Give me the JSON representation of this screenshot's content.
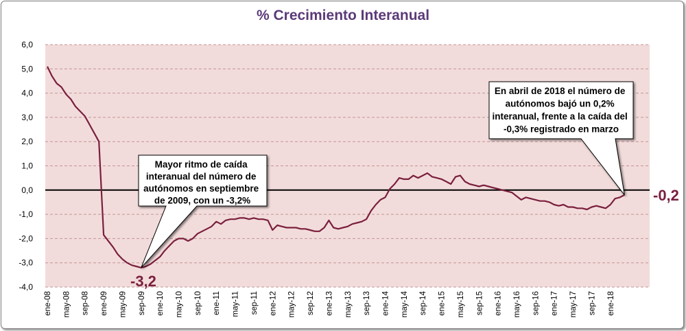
{
  "chart_data": {
    "type": "line",
    "title": "% Crecimiento Interanual",
    "xlabel": "",
    "ylabel": "",
    "ylim": [
      -4.0,
      6.0
    ],
    "y_ticks": [
      "6,0",
      "5,0",
      "4,0",
      "3,0",
      "2,0",
      "1,0",
      "0,0",
      "-1,0",
      "-2,0",
      "-3,0",
      "-4,0"
    ],
    "x_tick_labels": [
      "ene-08",
      "may-08",
      "sep-08",
      "ene-09",
      "may-09",
      "sep-09",
      "ene-10",
      "may-10",
      "sep-10",
      "ene-11",
      "may-11",
      "sep-11",
      "ene-12",
      "may-12",
      "sep-12",
      "ene-13",
      "may-13",
      "sep-13",
      "ene-14",
      "may-14",
      "sep-14",
      "ene-15",
      "may-15",
      "sep-15",
      "ene-16",
      "may-16",
      "sep-16",
      "ene-17",
      "may-17",
      "sep-17",
      "ene-18"
    ],
    "grid": true,
    "legend": "none",
    "colors": {
      "line": "#7a1f3d",
      "title": "#5b3a78",
      "plot_background": "#f2dcdb",
      "gridline": "#c09595",
      "zero_line": "#000000"
    },
    "series": [
      {
        "x": [
          "ene-08",
          "feb-08",
          "mar-08",
          "abr-08",
          "may-08",
          "jun-08",
          "jul-08",
          "ago-08",
          "sep-08",
          "oct-08",
          "nov-08",
          "dic-08",
          "ene-09",
          "feb-09",
          "mar-09",
          "abr-09",
          "may-09",
          "jun-09",
          "jul-09",
          "ago-09",
          "sep-09",
          "oct-09",
          "nov-09",
          "dic-09",
          "ene-10",
          "feb-10",
          "mar-10",
          "abr-10",
          "may-10",
          "jun-10",
          "jul-10",
          "ago-10",
          "sep-10",
          "oct-10",
          "nov-10",
          "dic-10",
          "ene-11",
          "feb-11",
          "mar-11",
          "abr-11",
          "may-11",
          "jun-11",
          "jul-11",
          "ago-11",
          "sep-11",
          "oct-11",
          "nov-11",
          "dic-11",
          "ene-12",
          "feb-12",
          "mar-12",
          "abr-12",
          "may-12",
          "jun-12",
          "jul-12",
          "ago-12",
          "sep-12",
          "oct-12",
          "nov-12",
          "dic-12",
          "ene-13",
          "feb-13",
          "mar-13",
          "abr-13",
          "may-13",
          "jun-13",
          "jul-13",
          "ago-13",
          "sep-13",
          "oct-13",
          "nov-13",
          "dic-13",
          "ene-14",
          "feb-14",
          "mar-14",
          "abr-14",
          "may-14",
          "jun-14",
          "jul-14",
          "ago-14",
          "sep-14",
          "oct-14",
          "nov-14",
          "dic-14",
          "ene-15",
          "feb-15",
          "mar-15",
          "abr-15",
          "may-15",
          "jun-15",
          "jul-15",
          "ago-15",
          "sep-15",
          "oct-15",
          "nov-15",
          "dic-15",
          "ene-16",
          "feb-16",
          "mar-16",
          "abr-16",
          "may-16",
          "jun-16",
          "jul-16",
          "ago-16",
          "sep-16",
          "oct-16",
          "nov-16",
          "dic-16",
          "ene-17",
          "feb-17",
          "mar-17",
          "abr-17",
          "may-17",
          "jun-17",
          "jul-17",
          "ago-17",
          "sep-17",
          "oct-17",
          "nov-17",
          "dic-17",
          "ene-18",
          "feb-18",
          "mar-18",
          "abr-18"
        ],
        "values": [
          5.1,
          4.7,
          4.4,
          4.25,
          3.95,
          3.75,
          3.45,
          3.25,
          3.05,
          2.7,
          2.35,
          2.0,
          -1.85,
          -2.1,
          -2.35,
          -2.65,
          -2.85,
          -3.0,
          -3.1,
          -3.15,
          -3.2,
          -3.15,
          -3.05,
          -2.9,
          -2.75,
          -2.5,
          -2.3,
          -2.1,
          -2.0,
          -2.0,
          -2.1,
          -2.0,
          -1.8,
          -1.7,
          -1.6,
          -1.5,
          -1.3,
          -1.4,
          -1.25,
          -1.2,
          -1.2,
          -1.15,
          -1.15,
          -1.2,
          -1.15,
          -1.2,
          -1.2,
          -1.25,
          -1.65,
          -1.45,
          -1.5,
          -1.55,
          -1.55,
          -1.55,
          -1.6,
          -1.6,
          -1.65,
          -1.7,
          -1.7,
          -1.55,
          -1.25,
          -1.55,
          -1.6,
          -1.55,
          -1.5,
          -1.4,
          -1.35,
          -1.3,
          -1.2,
          -0.85,
          -0.6,
          -0.4,
          -0.3,
          0.05,
          0.25,
          0.5,
          0.45,
          0.45,
          0.6,
          0.5,
          0.6,
          0.7,
          0.55,
          0.5,
          0.45,
          0.35,
          0.25,
          0.55,
          0.6,
          0.35,
          0.25,
          0.2,
          0.15,
          0.2,
          0.15,
          0.1,
          0.05,
          0.0,
          -0.05,
          -0.1,
          -0.25,
          -0.4,
          -0.3,
          -0.35,
          -0.4,
          -0.45,
          -0.45,
          -0.5,
          -0.6,
          -0.65,
          -0.6,
          -0.7,
          -0.7,
          -0.75,
          -0.75,
          -0.8,
          -0.7,
          -0.65,
          -0.7,
          -0.75,
          -0.6,
          -0.35,
          -0.3,
          -0.2
        ]
      }
    ],
    "annotations": {
      "min_label": "-3,2",
      "last_label": "-0,2",
      "callout_min": [
        "Mayor ritmo de caída",
        "interanual del número de",
        "autónomos en septiembre",
        "de 2009, con un -3,2%"
      ],
      "callout_last": [
        "En abril de 2018 el número de",
        "autónomos bajó un 0,2%",
        "interanual, frente a la caída del",
        "-0,3% registrado en marzo"
      ]
    }
  }
}
